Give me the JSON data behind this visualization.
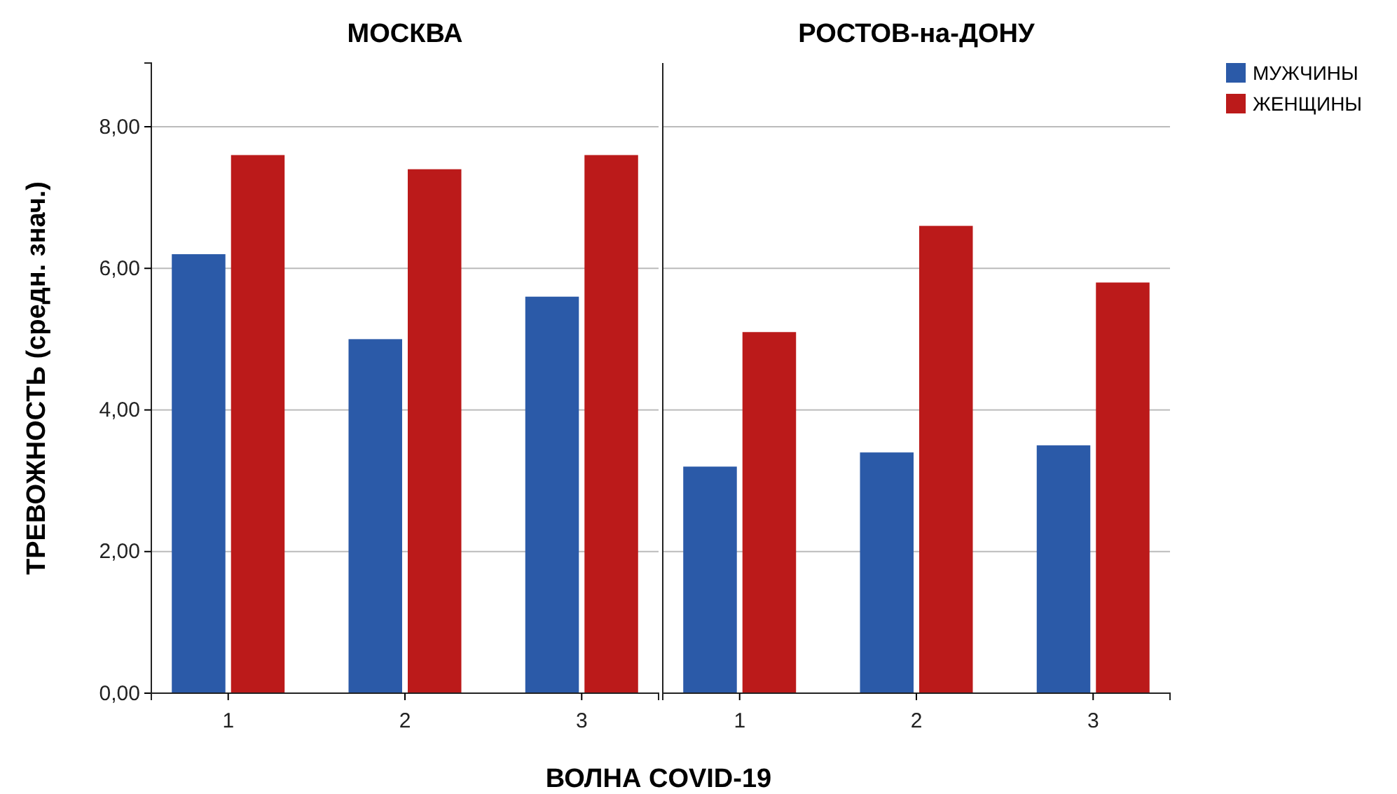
{
  "chart_data": [
    {
      "type": "bar",
      "title": "МОСКВА",
      "xlabel": "ВОЛНА  COVID-19",
      "ylabel": "ТРЕВОЖНОСТЬ (средн. знач.)",
      "categories": [
        "1",
        "2",
        "3"
      ],
      "series": [
        {
          "color": "#2b5aa8",
          "values": [
            6.2,
            5.0,
            5.6
          ]
        },
        {
          "color": "#bb1a1a",
          "values": [
            7.6,
            7.4,
            7.6
          ]
        }
      ],
      "ylim": [
        0,
        8.9
      ],
      "yticks": [
        {
          "value": 0,
          "label": "0,00"
        },
        {
          "value": 2,
          "label": "2,00"
        },
        {
          "value": 4,
          "label": "4,00"
        },
        {
          "value": 6,
          "label": "6,00"
        },
        {
          "value": 8,
          "label": "8,00"
        }
      ],
      "grid": "y",
      "legend": false
    },
    {
      "type": "bar",
      "title": "РОСТОВ-на-ДОНУ",
      "categories": [
        "1",
        "2",
        "3"
      ],
      "series": [
        {
          "name": "МУЖЧИНЫ",
          "color": "#2b5aa8",
          "values": [
            3.2,
            3.4,
            3.5
          ]
        },
        {
          "name": "ЖЕНЩИНЫ",
          "color": "#bb1a1a",
          "values": [
            5.1,
            6.6,
            5.8
          ]
        }
      ],
      "ylim": [
        0,
        8.9
      ],
      "yticks": [
        0,
        2,
        4,
        6,
        8
      ],
      "grid": "y",
      "legend": "right",
      "tick_labels": "x"
    }
  ]
}
